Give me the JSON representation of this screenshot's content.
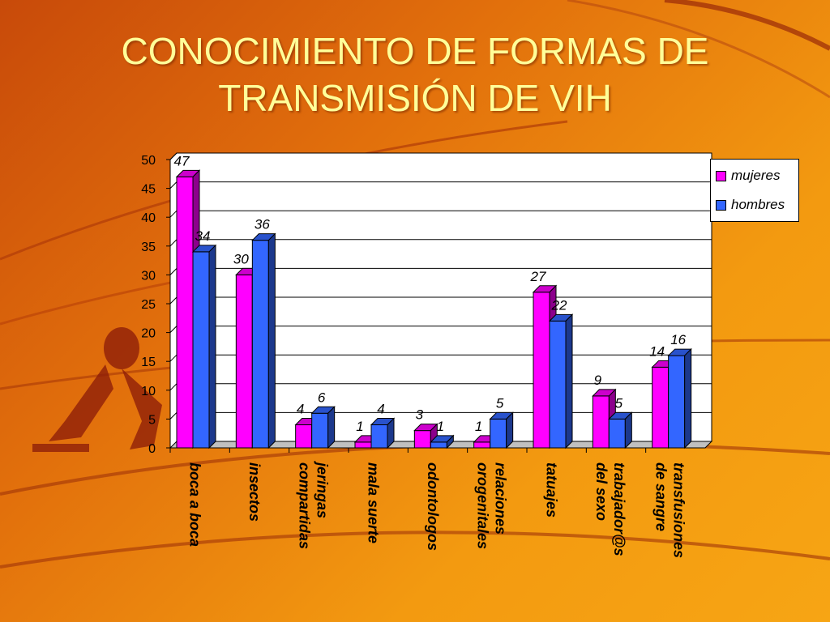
{
  "slide": {
    "title_line1": "CONOCIMIENTO DE FORMAS DE",
    "title_line2": "TRANSMISIÓN DE VIH"
  },
  "colors": {
    "mujeres": "#ff00ff",
    "hombres": "#3366ff",
    "background": "#e8780e",
    "title": "#ffff99"
  },
  "chart_data": {
    "type": "bar",
    "title": "CONOCIMIENTO DE FORMAS DE TRANSMISIÓN DE VIH",
    "categories": [
      [
        "boca a boca"
      ],
      [
        "insectos"
      ],
      [
        "jeringas",
        "compartidas"
      ],
      [
        "mala suerte"
      ],
      [
        "odontologos"
      ],
      [
        "relaciones",
        "orogenitales"
      ],
      [
        "tatuajes"
      ],
      [
        "trabajador@s",
        "del sexo"
      ],
      [
        "transfusiones",
        "de sangre"
      ]
    ],
    "series": [
      {
        "name": "mujeres",
        "values": [
          47,
          30,
          4,
          1,
          3,
          1,
          27,
          9,
          14
        ]
      },
      {
        "name": "hombres",
        "values": [
          34,
          36,
          6,
          4,
          1,
          5,
          22,
          5,
          16
        ]
      }
    ],
    "ylim": [
      0,
      50
    ],
    "yticks": [
      0,
      5,
      10,
      15,
      20,
      25,
      30,
      35,
      40,
      45,
      50
    ],
    "grid": true,
    "legend_position": "top-right",
    "style": "3d clustered columns, data labels italic"
  }
}
